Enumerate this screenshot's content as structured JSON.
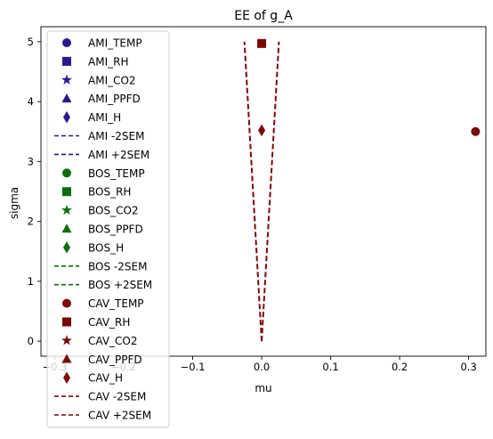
{
  "chart_data": {
    "type": "scatter",
    "title": "EE of g_A",
    "xlabel": "mu",
    "ylabel": "sigma",
    "xlim": [
      -0.32,
      0.325
    ],
    "ylim": [
      -0.25,
      5.25
    ],
    "xticks": [
      -0.3,
      -0.2,
      -0.1,
      0.0,
      0.1,
      0.2,
      0.3
    ],
    "xtick_labels": [
      "−0.3",
      "−0.2",
      "−0.1",
      "0.0",
      "0.1",
      "0.2",
      "0.3"
    ],
    "yticks": [
      0,
      1,
      2,
      3,
      4,
      5
    ],
    "ytick_labels": [
      "0",
      "1",
      "2",
      "3",
      "4",
      "5"
    ],
    "grid": false,
    "legend_position": "upper-left",
    "colors": {
      "AMI": "#2a1a8f",
      "BOS": "#0e6e0e",
      "CAV": "#7a0a0a"
    },
    "points": [
      {
        "group": "CAV",
        "label": "CAV_TEMP",
        "marker": "circle",
        "x": 0.31,
        "y": 3.5
      },
      {
        "group": "CAV",
        "label": "CAV_RH",
        "marker": "square",
        "x": 0.0,
        "y": 4.97
      },
      {
        "group": "CAV",
        "label": "CAV_H",
        "marker": "diamond",
        "x": 0.0,
        "y": 3.52
      }
    ],
    "sem_lines": [
      {
        "group": "CAV",
        "label": "CAV -2SEM",
        "x": [
          0.0,
          -0.025
        ],
        "y": [
          0,
          5
        ]
      },
      {
        "group": "CAV",
        "label": "CAV +2SEM",
        "x": [
          0.0,
          0.025
        ],
        "y": [
          0,
          5
        ]
      }
    ],
    "legend": [
      {
        "label": "AMI_TEMP",
        "group": "AMI",
        "marker": "circle"
      },
      {
        "label": "AMI_RH",
        "group": "AMI",
        "marker": "square"
      },
      {
        "label": "AMI_CO2",
        "group": "AMI",
        "marker": "star"
      },
      {
        "label": "AMI_PPFD",
        "group": "AMI",
        "marker": "triangle"
      },
      {
        "label": "AMI_H",
        "group": "AMI",
        "marker": "diamond"
      },
      {
        "label": "AMI -2SEM",
        "group": "AMI",
        "marker": "dash"
      },
      {
        "label": "AMI +2SEM",
        "group": "AMI",
        "marker": "dash"
      },
      {
        "label": "BOS_TEMP",
        "group": "BOS",
        "marker": "circle"
      },
      {
        "label": "BOS_RH",
        "group": "BOS",
        "marker": "square"
      },
      {
        "label": "BOS_CO2",
        "group": "BOS",
        "marker": "star"
      },
      {
        "label": "BOS_PPFD",
        "group": "BOS",
        "marker": "triangle"
      },
      {
        "label": "BOS_H",
        "group": "BOS",
        "marker": "diamond"
      },
      {
        "label": "BOS -2SEM",
        "group": "BOS",
        "marker": "dash"
      },
      {
        "label": "BOS +2SEM",
        "group": "BOS",
        "marker": "dash"
      },
      {
        "label": "CAV_TEMP",
        "group": "CAV",
        "marker": "circle"
      },
      {
        "label": "CAV_RH",
        "group": "CAV",
        "marker": "square"
      },
      {
        "label": "CAV_CO2",
        "group": "CAV",
        "marker": "star"
      },
      {
        "label": "CAV_PPFD",
        "group": "CAV",
        "marker": "triangle"
      },
      {
        "label": "CAV_H",
        "group": "CAV",
        "marker": "diamond"
      },
      {
        "label": "CAV -2SEM",
        "group": "CAV",
        "marker": "dash"
      },
      {
        "label": "CAV +2SEM",
        "group": "CAV",
        "marker": "dash"
      }
    ]
  }
}
